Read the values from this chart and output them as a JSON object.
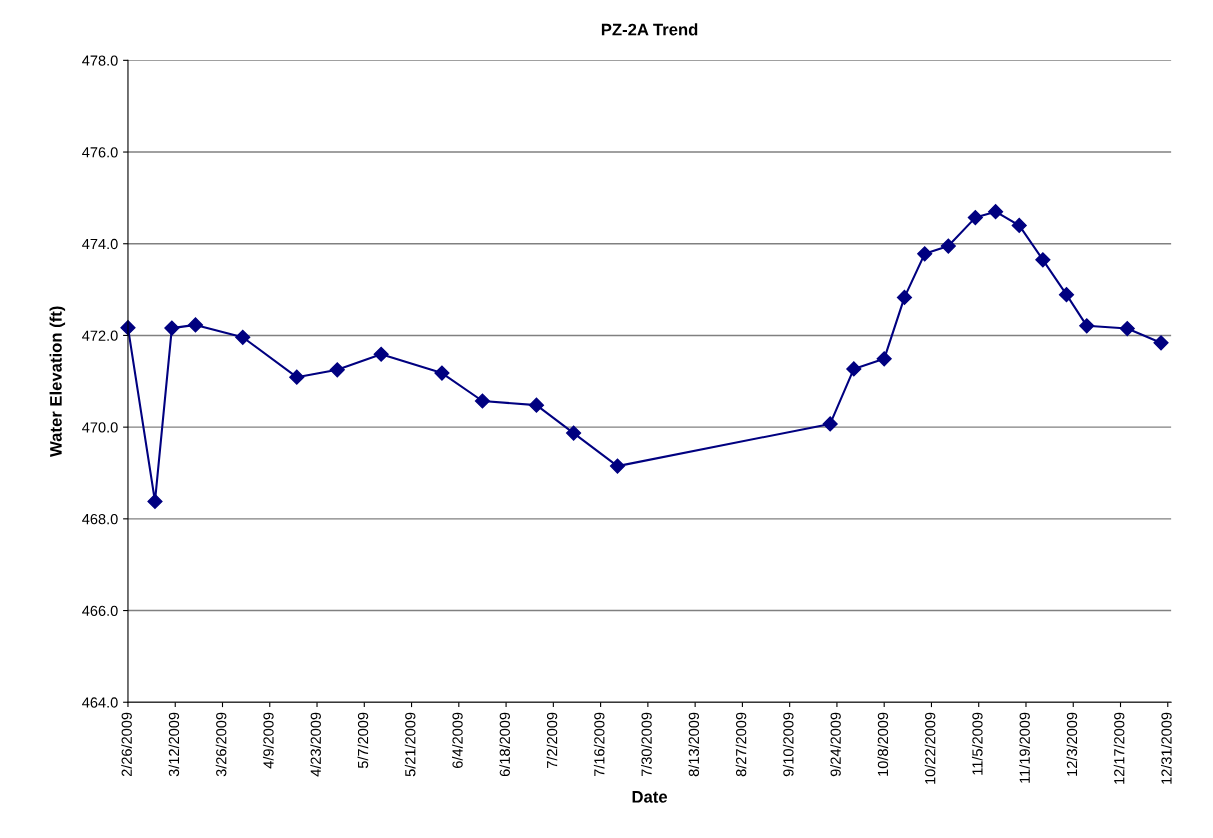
{
  "chart_data": {
    "type": "line",
    "title": "PZ-2A Trend",
    "xlabel": "Date",
    "ylabel": "Water Elevation (ft)",
    "x": [
      "2009-02-26",
      "2009-03-06",
      "2009-03-11",
      "2009-03-18",
      "2009-04-01",
      "2009-04-17",
      "2009-04-29",
      "2009-05-12",
      "2009-05-30",
      "2009-06-11",
      "2009-06-27",
      "2009-07-08",
      "2009-07-21",
      "2009-09-22",
      "2009-09-29",
      "2009-10-08",
      "2009-10-14",
      "2009-10-20",
      "2009-10-27",
      "2009-11-04",
      "2009-11-10",
      "2009-11-17",
      "2009-11-24",
      "2009-12-01",
      "2009-12-07",
      "2009-12-19",
      "2009-12-29"
    ],
    "series": [
      {
        "color": "#000080",
        "values": [
          472.17,
          468.38,
          472.16,
          472.23,
          471.96,
          471.09,
          471.25,
          471.59,
          471.18,
          470.57,
          470.48,
          469.87,
          469.15,
          470.07,
          471.27,
          471.49,
          472.83,
          473.78,
          473.95,
          474.57,
          474.7,
          474.4,
          473.65,
          472.89,
          472.21,
          472.15,
          471.84
        ]
      }
    ],
    "xlim": [
      "2009-02-26",
      "2010-01-01"
    ],
    "xticks": [
      {
        "value": "2009-02-26",
        "label": "2/26/2009"
      },
      {
        "value": "2009-03-12",
        "label": "3/12/2009"
      },
      {
        "value": "2009-03-26",
        "label": "3/26/2009"
      },
      {
        "value": "2009-04-09",
        "label": "4/9/2009"
      },
      {
        "value": "2009-04-23",
        "label": "4/23/2009"
      },
      {
        "value": "2009-05-07",
        "label": "5/7/2009"
      },
      {
        "value": "2009-05-21",
        "label": "5/21/2009"
      },
      {
        "value": "2009-06-04",
        "label": "6/4/2009"
      },
      {
        "value": "2009-06-18",
        "label": "6/18/2009"
      },
      {
        "value": "2009-07-02",
        "label": "7/2/2009"
      },
      {
        "value": "2009-07-16",
        "label": "7/16/2009"
      },
      {
        "value": "2009-07-30",
        "label": "7/30/2009"
      },
      {
        "value": "2009-08-13",
        "label": "8/13/2009"
      },
      {
        "value": "2009-08-27",
        "label": "8/27/2009"
      },
      {
        "value": "2009-09-10",
        "label": "9/10/2009"
      },
      {
        "value": "2009-09-24",
        "label": "9/24/2009"
      },
      {
        "value": "2009-10-08",
        "label": "10/8/2009"
      },
      {
        "value": "2009-10-22",
        "label": "10/22/2009"
      },
      {
        "value": "2009-11-05",
        "label": "11/5/2009"
      },
      {
        "value": "2009-11-19",
        "label": "11/19/2009"
      },
      {
        "value": "2009-12-03",
        "label": "12/3/2009"
      },
      {
        "value": "2009-12-17",
        "label": "12/17/2009"
      },
      {
        "value": "2009-12-31",
        "label": "12/31/2009"
      }
    ],
    "ylim": [
      464,
      478
    ],
    "yticks": [
      {
        "value": 464,
        "label": "464.0"
      },
      {
        "value": 466,
        "label": "466.0"
      },
      {
        "value": 468,
        "label": "468.0"
      },
      {
        "value": 470,
        "label": "470.0"
      },
      {
        "value": 472,
        "label": "472.0"
      },
      {
        "value": 474,
        "label": "474.0"
      },
      {
        "value": 476,
        "label": "476.0"
      },
      {
        "value": 478,
        "label": "478.0"
      }
    ],
    "grid": "y",
    "marker": "diamond",
    "line_style": "solid"
  }
}
